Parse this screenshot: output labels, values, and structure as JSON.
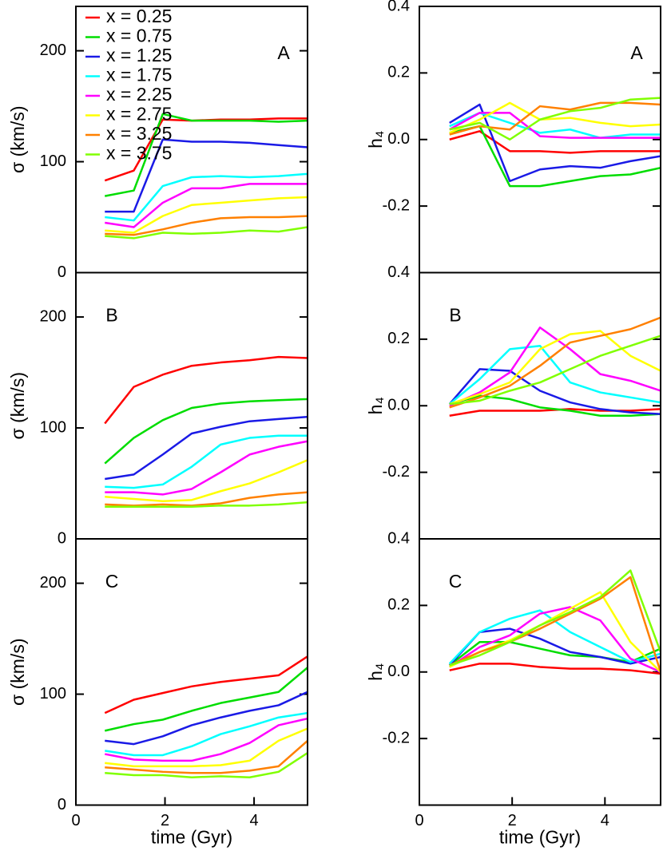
{
  "chart_data": [
    {
      "type": "line",
      "panel_label": "A",
      "ylabel": "σ (km/s)",
      "xlim": [
        0,
        5.2
      ],
      "ylim": [
        0,
        240
      ],
      "yticks": [
        0,
        100,
        200
      ],
      "legend": "upper left",
      "x": [
        0.65,
        1.3,
        1.95,
        2.6,
        3.25,
        3.9,
        4.55,
        5.2
      ],
      "series": [
        {
          "name": "x = 0.25",
          "color": "#ff0000",
          "values": [
            83,
            92,
            138,
            137,
            138,
            138,
            139,
            139
          ]
        },
        {
          "name": "x = 0.75",
          "color": "#00dd00",
          "values": [
            69,
            74,
            143,
            137,
            137,
            137,
            136,
            137
          ]
        },
        {
          "name": "x = 1.25",
          "color": "#1a1ae6",
          "values": [
            55,
            55,
            120,
            118,
            118,
            117,
            115,
            113
          ]
        },
        {
          "name": "x = 1.75",
          "color": "#00ffff",
          "values": [
            50,
            47,
            78,
            86,
            87,
            86,
            87,
            89
          ]
        },
        {
          "name": "x = 2.25",
          "color": "#ff00ff",
          "values": [
            45,
            41,
            63,
            76,
            76,
            80,
            80,
            80
          ]
        },
        {
          "name": "x = 2.75",
          "color": "#ffff00",
          "values": [
            38,
            36,
            51,
            61,
            63,
            65,
            67,
            68
          ]
        },
        {
          "name": "x = 3.25",
          "color": "#ff8000",
          "values": [
            35,
            34,
            39,
            45,
            49,
            50,
            50,
            51
          ]
        },
        {
          "name": "x = 3.75",
          "color": "#80ff00",
          "values": [
            33,
            31,
            36,
            35,
            36,
            38,
            37,
            41
          ]
        }
      ]
    },
    {
      "type": "line",
      "panel_label": "A",
      "ylabel": "h₄",
      "xlim": [
        0,
        5.2
      ],
      "ylim": [
        -0.4,
        0.4
      ],
      "yticks": [
        -0.2,
        {
          "value": 0,
          "label": "0.0"
        },
        0.2,
        0.4
      ],
      "x": [
        0.65,
        1.3,
        1.95,
        2.6,
        3.25,
        3.9,
        4.55,
        5.2
      ],
      "series": [
        {
          "color": "#ff0000",
          "values": [
            0.0,
            0.025,
            -0.035,
            -0.035,
            -0.04,
            -0.035,
            -0.035,
            -0.035
          ]
        },
        {
          "color": "#00dd00",
          "values": [
            0.02,
            0.04,
            -0.14,
            -0.14,
            -0.125,
            -0.11,
            -0.105,
            -0.085
          ]
        },
        {
          "color": "#1a1ae6",
          "values": [
            0.05,
            0.105,
            -0.125,
            -0.09,
            -0.08,
            -0.085,
            -0.065,
            -0.05
          ]
        },
        {
          "color": "#00ffff",
          "values": [
            0.04,
            0.08,
            0.05,
            0.02,
            0.03,
            0.005,
            0.015,
            0.015
          ]
        },
        {
          "color": "#ff00ff",
          "values": [
            0.03,
            0.08,
            0.08,
            0.01,
            0.005,
            0.005,
            0.005,
            0.005
          ]
        },
        {
          "color": "#ffff00",
          "values": [
            0.02,
            0.06,
            0.11,
            0.06,
            0.065,
            0.05,
            0.04,
            0.045
          ]
        },
        {
          "color": "#ff8000",
          "values": [
            0.015,
            0.04,
            0.03,
            0.1,
            0.09,
            0.11,
            0.11,
            0.105
          ]
        },
        {
          "color": "#80ff00",
          "values": [
            0.03,
            0.05,
            0.0,
            0.06,
            0.085,
            0.095,
            0.12,
            0.125
          ]
        }
      ]
    },
    {
      "type": "line",
      "panel_label": "B",
      "ylabel": "σ (km/s)",
      "xlim": [
        0,
        5.2
      ],
      "ylim": [
        0,
        240
      ],
      "yticks": [
        0,
        100,
        200
      ],
      "x": [
        0.65,
        1.3,
        1.95,
        2.6,
        3.25,
        3.9,
        4.55,
        5.2
      ],
      "series": [
        {
          "color": "#ff0000",
          "values": [
            104,
            137,
            148,
            156,
            159,
            161,
            164,
            163
          ]
        },
        {
          "color": "#00dd00",
          "values": [
            68,
            91,
            107,
            118,
            122,
            124,
            125,
            126
          ]
        },
        {
          "color": "#1a1ae6",
          "values": [
            54,
            58,
            76,
            95,
            101,
            106,
            108,
            110
          ]
        },
        {
          "color": "#00ffff",
          "values": [
            47,
            46,
            49,
            65,
            85,
            91,
            93,
            93
          ]
        },
        {
          "color": "#ff00ff",
          "values": [
            42,
            42,
            40,
            45,
            60,
            76,
            83,
            88
          ]
        },
        {
          "color": "#ffff00",
          "values": [
            38,
            36,
            34,
            35,
            43,
            50,
            60,
            71
          ]
        },
        {
          "color": "#ff8000",
          "values": [
            31,
            30,
            31,
            30,
            32,
            37,
            40,
            42
          ]
        },
        {
          "color": "#80ff00",
          "values": [
            29,
            29,
            29,
            29,
            30,
            30,
            31,
            33
          ]
        }
      ]
    },
    {
      "type": "line",
      "panel_label": "B",
      "ylabel": "h₄",
      "xlim": [
        0,
        5.2
      ],
      "ylim": [
        -0.4,
        0.4
      ],
      "yticks": [
        -0.2,
        {
          "value": 0,
          "label": "0.0"
        },
        0.2,
        0.4
      ],
      "x": [
        0.65,
        1.3,
        1.95,
        2.6,
        3.25,
        3.9,
        4.55,
        5.2
      ],
      "series": [
        {
          "color": "#ff0000",
          "values": [
            -0.03,
            -0.015,
            -0.015,
            -0.015,
            -0.01,
            -0.015,
            -0.015,
            -0.01
          ]
        },
        {
          "color": "#00dd00",
          "values": [
            0.005,
            0.03,
            0.02,
            -0.005,
            -0.015,
            -0.03,
            -0.03,
            -0.025
          ]
        },
        {
          "color": "#1a1ae6",
          "values": [
            0.005,
            0.11,
            0.105,
            0.045,
            0.01,
            -0.01,
            -0.02,
            -0.025
          ]
        },
        {
          "color": "#00ffff",
          "values": [
            0.005,
            0.08,
            0.17,
            0.18,
            0.07,
            0.04,
            0.025,
            0.01
          ]
        },
        {
          "color": "#ff00ff",
          "values": [
            0.0,
            0.04,
            0.1,
            0.235,
            0.17,
            0.095,
            0.075,
            0.045
          ]
        },
        {
          "color": "#ffff00",
          "values": [
            0.005,
            0.035,
            0.07,
            0.17,
            0.215,
            0.225,
            0.15,
            0.105
          ]
        },
        {
          "color": "#ff8000",
          "values": [
            -0.005,
            0.025,
            0.06,
            0.12,
            0.19,
            0.21,
            0.23,
            0.265
          ]
        },
        {
          "color": "#80ff00",
          "values": [
            0.005,
            0.015,
            0.045,
            0.07,
            0.11,
            0.15,
            0.18,
            0.21
          ]
        }
      ]
    },
    {
      "type": "line",
      "panel_label": "C",
      "ylabel": "σ (km/s)",
      "xlabel": "time (Gyr)",
      "xlim": [
        0,
        5.2
      ],
      "ylim": [
        0,
        240
      ],
      "yticks": [
        0,
        100,
        200
      ],
      "xticks": [
        0,
        2,
        4
      ],
      "x": [
        0.65,
        1.3,
        1.95,
        2.6,
        3.25,
        3.9,
        4.55,
        5.2
      ],
      "series": [
        {
          "color": "#ff0000",
          "values": [
            83,
            95,
            101,
            107,
            111,
            114,
            117,
            134
          ]
        },
        {
          "color": "#00dd00",
          "values": [
            67,
            73,
            77,
            85,
            92,
            97,
            102,
            124
          ]
        },
        {
          "color": "#1a1ae6",
          "values": [
            58,
            55,
            62,
            72,
            79,
            85,
            90,
            102
          ]
        },
        {
          "color": "#00ffff",
          "values": [
            49,
            45,
            45,
            53,
            64,
            71,
            79,
            83
          ]
        },
        {
          "color": "#ff00ff",
          "values": [
            46,
            41,
            40,
            40,
            46,
            56,
            72,
            78
          ]
        },
        {
          "color": "#ffff00",
          "values": [
            38,
            35,
            35,
            35,
            36,
            40,
            58,
            69
          ]
        },
        {
          "color": "#ff8000",
          "values": [
            34,
            32,
            30,
            29,
            29,
            31,
            35,
            58
          ]
        },
        {
          "color": "#80ff00",
          "values": [
            29,
            27,
            27,
            25,
            26,
            25,
            30,
            47
          ]
        }
      ]
    },
    {
      "type": "line",
      "panel_label": "C",
      "ylabel": "h₄",
      "xlabel": "time (Gyr)",
      "xlim": [
        0,
        5.2
      ],
      "ylim": [
        -0.4,
        0.4
      ],
      "yticks": [
        -0.2,
        {
          "value": 0,
          "label": "0.0"
        },
        0.2,
        0.4
      ],
      "xticks": [
        0,
        2,
        4
      ],
      "x": [
        0.65,
        1.3,
        1.95,
        2.6,
        3.25,
        3.9,
        4.55,
        5.2
      ],
      "series": [
        {
          "color": "#ff0000",
          "values": [
            0.005,
            0.025,
            0.025,
            0.015,
            0.01,
            0.01,
            0.005,
            -0.005
          ]
        },
        {
          "color": "#00dd00",
          "values": [
            0.02,
            0.09,
            0.09,
            0.07,
            0.05,
            0.045,
            0.03,
            0.07
          ]
        },
        {
          "color": "#1a1ae6",
          "values": [
            0.02,
            0.12,
            0.13,
            0.1,
            0.06,
            0.045,
            0.025,
            0.045
          ]
        },
        {
          "color": "#00ffff",
          "values": [
            0.025,
            0.12,
            0.16,
            0.185,
            0.12,
            0.075,
            0.03,
            0.055
          ]
        },
        {
          "color": "#ff00ff",
          "values": [
            0.015,
            0.075,
            0.11,
            0.175,
            0.195,
            0.155,
            0.04,
            0.0
          ]
        },
        {
          "color": "#ffff00",
          "values": [
            0.015,
            0.06,
            0.095,
            0.14,
            0.19,
            0.24,
            0.09,
            0.0
          ]
        },
        {
          "color": "#ff8000",
          "values": [
            0.02,
            0.06,
            0.09,
            0.13,
            0.175,
            0.22,
            0.285,
            0.0
          ]
        },
        {
          "color": "#80ff00",
          "values": [
            0.02,
            0.05,
            0.09,
            0.14,
            0.18,
            0.225,
            0.305,
            0.06
          ]
        }
      ]
    }
  ]
}
